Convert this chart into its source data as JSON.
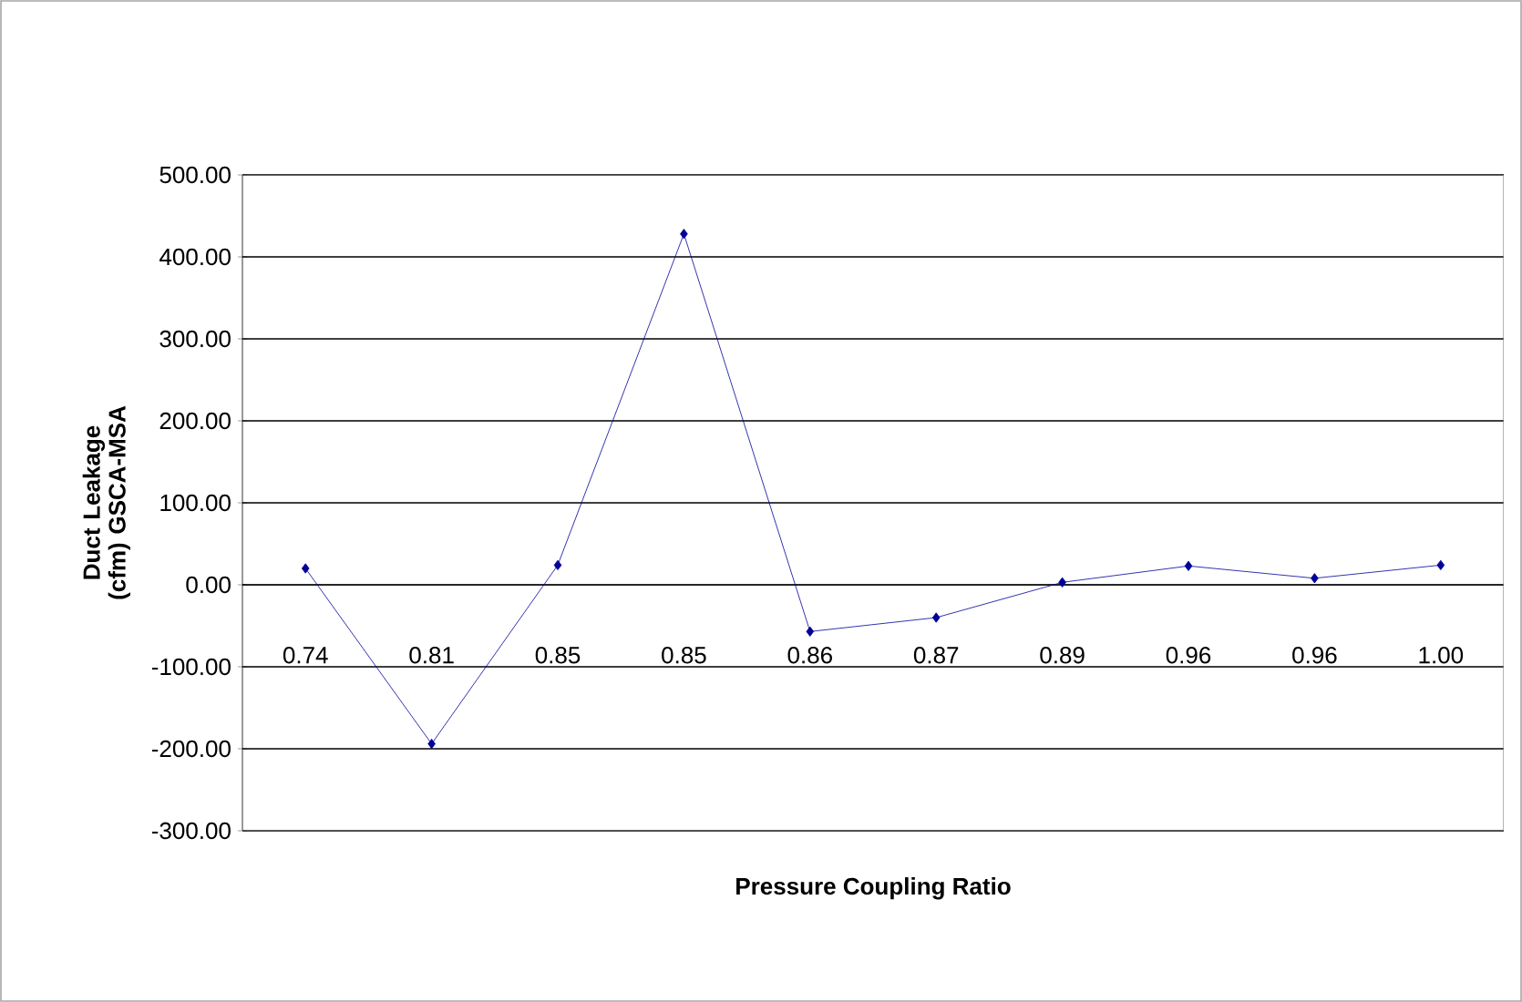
{
  "chart_data": {
    "type": "line",
    "xlabel": "Pressure Coupling Ratio",
    "ylabel": "Duct Leakage (cfm) GSCA-MSA",
    "categories": [
      "0.74",
      "0.81",
      "0.85",
      "0.85",
      "0.86",
      "0.87",
      "0.89",
      "0.96",
      "0.96",
      "1.00"
    ],
    "series": [
      {
        "color": "#000099",
        "values": [
          20,
          -194,
          24,
          428,
          -57,
          -40,
          3,
          23,
          8,
          24
        ]
      }
    ],
    "ylim": [
      -300,
      500
    ],
    "yticks": [
      {
        "value": -300,
        "label": "-300.00"
      },
      {
        "value": -200,
        "label": "-200.00"
      },
      {
        "value": -100,
        "label": "-100.00"
      },
      {
        "value": 0,
        "label": "0.00"
      },
      {
        "value": 100,
        "label": "100.00"
      },
      {
        "value": 200,
        "label": "200.00"
      },
      {
        "value": 300,
        "label": "300.00"
      },
      {
        "value": 400,
        "label": "400.00"
      },
      {
        "value": 500,
        "label": "500.00"
      }
    ],
    "grid": "y",
    "marker": "diamond",
    "line_style": "solid"
  }
}
